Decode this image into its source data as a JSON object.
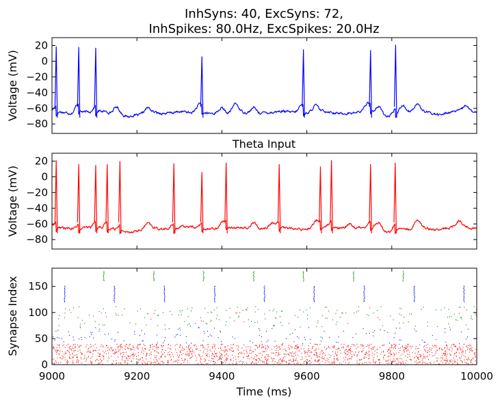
{
  "figure": {
    "title_line1": "InhSyns: 40, ExcSyns: 72,",
    "title_line2": "InhSpikes: 80.0Hz, ExcSpikes: 20.0Hz"
  },
  "chart_data": [
    {
      "type": "line",
      "panel": "top",
      "title": "InhSyns: 40, ExcSyns: 72, InhSpikes: 80.0Hz, ExcSpikes: 20.0Hz",
      "ylabel": "Voltage (mV)",
      "xlabel": "",
      "xlim": [
        9000,
        10000
      ],
      "ylim": [
        -92,
        30
      ],
      "yticks": [
        20,
        0,
        -20,
        -40,
        -60,
        -80
      ],
      "color": "#0000ff",
      "baseline_mV": -65,
      "spikes": [
        {
          "t": 9010,
          "peak": 19
        },
        {
          "t": 9063,
          "peak": 18
        },
        {
          "t": 9103,
          "peak": 17
        },
        {
          "t": 9353,
          "peak": 6
        },
        {
          "t": 9592,
          "peak": 15
        },
        {
          "t": 9750,
          "peak": 14
        },
        {
          "t": 9809,
          "peak": 21
        }
      ],
      "depolarizations": [
        {
          "t": 9060,
          "v": -58
        },
        {
          "t": 9152,
          "v": -57
        },
        {
          "t": 9225,
          "v": -60
        },
        {
          "t": 9345,
          "v": -58
        },
        {
          "t": 9400,
          "v": -58
        },
        {
          "t": 9432,
          "v": -55
        },
        {
          "t": 9475,
          "v": -58
        },
        {
          "t": 9585,
          "v": -58
        },
        {
          "t": 9620,
          "v": -57
        },
        {
          "t": 9742,
          "v": -57
        },
        {
          "t": 9770,
          "v": -58
        },
        {
          "t": 9825,
          "v": -56
        },
        {
          "t": 9860,
          "v": -55
        },
        {
          "t": 9975,
          "v": -57
        }
      ],
      "hyperpolarizations": [
        {
          "t": 9180,
          "v": -70
        },
        {
          "t": 9205,
          "v": -70
        },
        {
          "t": 9325,
          "v": -67
        },
        {
          "t": 9410,
          "v": -68
        },
        {
          "t": 9520,
          "v": -66
        },
        {
          "t": 9670,
          "v": -66
        },
        {
          "t": 9790,
          "v": -69
        },
        {
          "t": 9915,
          "v": -67
        }
      ]
    },
    {
      "type": "line",
      "panel": "middle",
      "title": "Theta Input",
      "ylabel": "Voltage (mV)",
      "xlabel": "",
      "xlim": [
        9000,
        10000
      ],
      "ylim": [
        -92,
        30
      ],
      "yticks": [
        20,
        0,
        -20,
        -40,
        -60,
        -80
      ],
      "color": "#ff0000",
      "baseline_mV": -65,
      "spikes": [
        {
          "t": 9010,
          "peak": 21
        },
        {
          "t": 9063,
          "peak": 16
        },
        {
          "t": 9103,
          "peak": 15
        },
        {
          "t": 9130,
          "peak": 16
        },
        {
          "t": 9160,
          "peak": 20
        },
        {
          "t": 9287,
          "peak": 17
        },
        {
          "t": 9353,
          "peak": 6
        },
        {
          "t": 9410,
          "peak": 18
        },
        {
          "t": 9535,
          "peak": 16
        },
        {
          "t": 9632,
          "peak": 13
        },
        {
          "t": 9658,
          "peak": 21
        },
        {
          "t": 9750,
          "peak": 16
        },
        {
          "t": 9808,
          "peak": 18
        }
      ],
      "depolarizations": [
        {
          "t": 9225,
          "v": -60
        },
        {
          "t": 9400,
          "v": -58
        },
        {
          "t": 9475,
          "v": -57
        },
        {
          "t": 9520,
          "v": -60
        },
        {
          "t": 9620,
          "v": -58
        },
        {
          "t": 9700,
          "v": -58
        },
        {
          "t": 9770,
          "v": -58
        },
        {
          "t": 9860,
          "v": -55
        },
        {
          "t": 9960,
          "v": -57
        }
      ],
      "hyperpolarizations": [
        {
          "t": 9180,
          "v": -70
        },
        {
          "t": 9205,
          "v": -70
        },
        {
          "t": 9440,
          "v": -66
        },
        {
          "t": 9570,
          "v": -66
        },
        {
          "t": 9790,
          "v": -69
        },
        {
          "t": 9840,
          "v": -68
        },
        {
          "t": 9915,
          "v": -66
        }
      ]
    },
    {
      "type": "scatter",
      "panel": "bottom",
      "title": "",
      "xlabel": "Time (ms)",
      "ylabel": "Synapse Index",
      "xlim": [
        9000,
        10000
      ],
      "ylim": [
        0,
        185
      ],
      "xticks": [
        9000,
        9200,
        9400,
        9600,
        9800,
        10000
      ],
      "yticks": [
        0,
        50,
        100,
        150
      ],
      "groups": [
        {
          "color": "#ff0000",
          "index_range": [
            0,
            40
          ],
          "rate_hz": 80
        },
        {
          "color": "#0000ff",
          "index_range": [
            40,
            72
          ],
          "rate_hz": 20
        },
        {
          "color": "#ff0000",
          "index_range": [
            72,
            112
          ],
          "rate_hz": 4
        },
        {
          "color": "#008000",
          "index_range": [
            72,
            112
          ],
          "rate_hz": 20
        },
        {
          "color": "#0000ff",
          "index_range": [
            120,
            152
          ],
          "bursts_t": [
            9030,
            9147,
            9265,
            9383,
            9500,
            9617,
            9735,
            9853,
            9970
          ]
        },
        {
          "color": "#008000",
          "index_range": [
            160,
            180
          ],
          "bursts_t": [
            9122,
            9240,
            9357,
            9475,
            9592,
            9710,
            9827
          ]
        }
      ]
    }
  ]
}
